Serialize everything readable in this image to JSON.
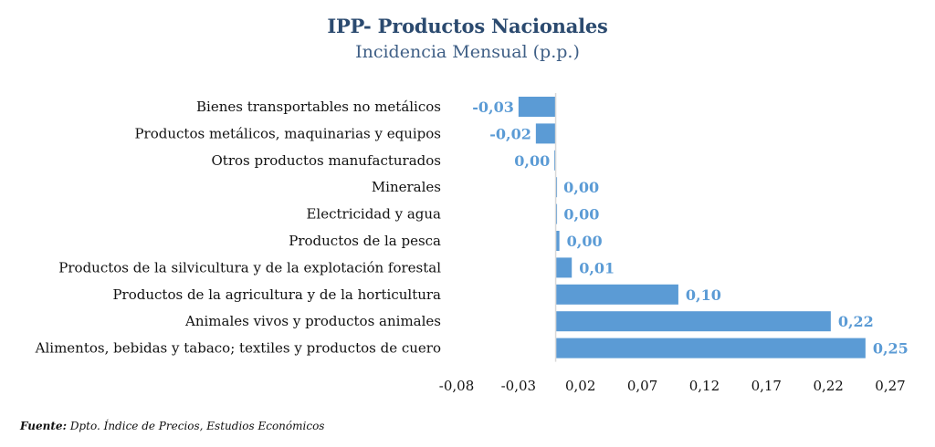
{
  "chart_data": {
    "type": "bar",
    "orientation": "horizontal",
    "title": "IPP- Productos Nacionales",
    "subtitle": "Incidencia Mensual (p.p.)",
    "categories": [
      "Bienes transportables no metálicos",
      "Productos metálicos, maquinarias y equipos",
      "Otros productos manufacturados",
      "Minerales",
      "Electricidad y agua",
      "Productos de la pesca",
      "Productos de la silvicultura y de la explotación forestal",
      "Productos de la agricultura y de la horticultura",
      "Animales vivos y productos animales",
      "Alimentos, bebidas y tabaco; textiles y productos de cuero"
    ],
    "values": [
      -0.03,
      -0.016,
      -0.001,
      0.0004,
      0.0006,
      0.003,
      0.013,
      0.099,
      0.222,
      0.25
    ],
    "data_labels": [
      "-0,03",
      "-0,02",
      "0,00",
      "0,00",
      "0,00",
      "0,00",
      "0,01",
      "0,10",
      "0,22",
      "0,25"
    ],
    "xlim": [
      -0.08,
      0.27
    ],
    "xticks": [
      -0.08,
      -0.03,
      0.02,
      0.07,
      0.12,
      0.17,
      0.22,
      0.27
    ],
    "xtick_labels": [
      "-0,08",
      "-0,03",
      "0,02",
      "0,07",
      "0,12",
      "0,17",
      "0,22",
      "0,27"
    ],
    "bar_color": "#5b9bd5",
    "label_color": "#5b9bd5",
    "axis_color": "#d9d9d9",
    "grid": false,
    "legend": "none"
  },
  "source": {
    "prefix": "Fuente:",
    "text": " Dpto. Índice de Precios, Estudios Económicos"
  }
}
